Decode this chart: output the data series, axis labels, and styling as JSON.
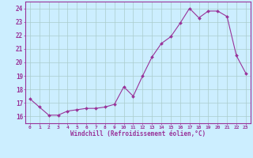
{
  "x": [
    0,
    1,
    2,
    3,
    4,
    5,
    6,
    7,
    8,
    9,
    10,
    11,
    12,
    13,
    14,
    15,
    16,
    17,
    18,
    19,
    20,
    21,
    22,
    23
  ],
  "y": [
    17.3,
    16.7,
    16.1,
    16.1,
    16.4,
    16.5,
    16.6,
    16.6,
    16.7,
    16.9,
    18.2,
    17.5,
    19.0,
    20.4,
    21.4,
    21.9,
    22.9,
    24.0,
    23.3,
    23.8,
    23.8,
    23.4,
    20.5,
    19.2
  ],
  "line_color": "#993399",
  "marker": "D",
  "marker_size": 2.0,
  "bg_color": "#cceeff",
  "grid_color": "#aacccc",
  "tick_color": "#993399",
  "label_color": "#993399",
  "xlabel": "Windchill (Refroidissement éolien,°C)",
  "ylabel": "",
  "xlim": [
    -0.5,
    23.5
  ],
  "ylim": [
    15.5,
    24.5
  ],
  "yticks": [
    16,
    17,
    18,
    19,
    20,
    21,
    22,
    23,
    24
  ],
  "xticks": [
    0,
    1,
    2,
    3,
    4,
    5,
    6,
    7,
    8,
    9,
    10,
    11,
    12,
    13,
    14,
    15,
    16,
    17,
    18,
    19,
    20,
    21,
    22,
    23
  ],
  "figsize": [
    3.2,
    2.0
  ],
  "dpi": 100
}
